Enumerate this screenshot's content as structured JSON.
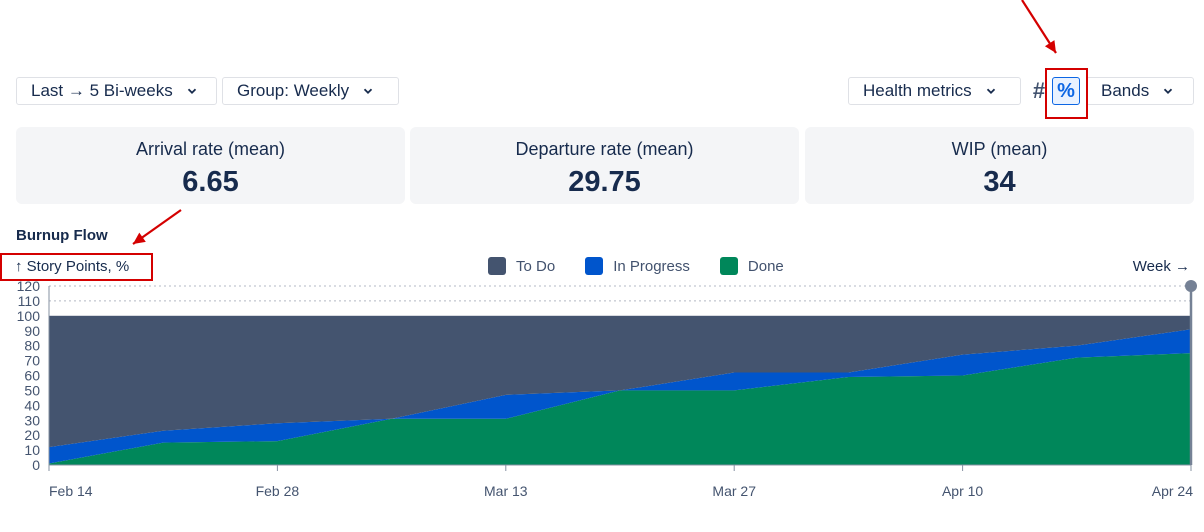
{
  "toolbar": {
    "range_label": "Last → 5 Bi-weeks",
    "group_label": "Group: Weekly",
    "health_label": "Health metrics",
    "count_symbol": "#",
    "percent_symbol": "%",
    "bands_label": "Bands"
  },
  "metrics": [
    {
      "label": "Arrival rate (mean)",
      "value": "6.65"
    },
    {
      "label": "Departure rate (mean)",
      "value": "29.75"
    },
    {
      "label": "WIP (mean)",
      "value": "34"
    }
  ],
  "section_title": "Burnup Flow",
  "colors": {
    "todo": "#44546f",
    "in_progress": "#0055cc",
    "done": "#00875a",
    "highlight": "#d40000"
  },
  "chart_data": {
    "type": "area",
    "stacked": true,
    "ylabel": "↑ Story Points, %",
    "xlabel": "Week →",
    "ylim": [
      0,
      120
    ],
    "yticks": [
      0,
      10,
      20,
      30,
      40,
      50,
      60,
      70,
      80,
      90,
      100,
      110,
      120
    ],
    "xtick_labels": [
      "Feb 14",
      "Feb 28",
      "Mar 13",
      "Mar 27",
      "Apr 10",
      "Apr 24"
    ],
    "x": [
      "Feb 14",
      "Feb 21",
      "Feb 28",
      "Mar 6",
      "Mar 13",
      "Mar 20",
      "Mar 27",
      "Apr 3",
      "Apr 10",
      "Apr 17",
      "Apr 24"
    ],
    "series": [
      {
        "name": "Done",
        "values": [
          1,
          15,
          16,
          31,
          31,
          50,
          50,
          59,
          60,
          72,
          75
        ]
      },
      {
        "name": "In Progress",
        "values": [
          11,
          8,
          12,
          0,
          16,
          0,
          12,
          3,
          14,
          8,
          16
        ]
      },
      {
        "name": "To Do",
        "values": [
          88,
          77,
          72,
          69,
          53,
          50,
          38,
          38,
          26,
          20,
          9
        ]
      }
    ],
    "legend": [
      "To Do",
      "In Progress",
      "Done"
    ],
    "legend_position": "top-center",
    "grid": true
  }
}
